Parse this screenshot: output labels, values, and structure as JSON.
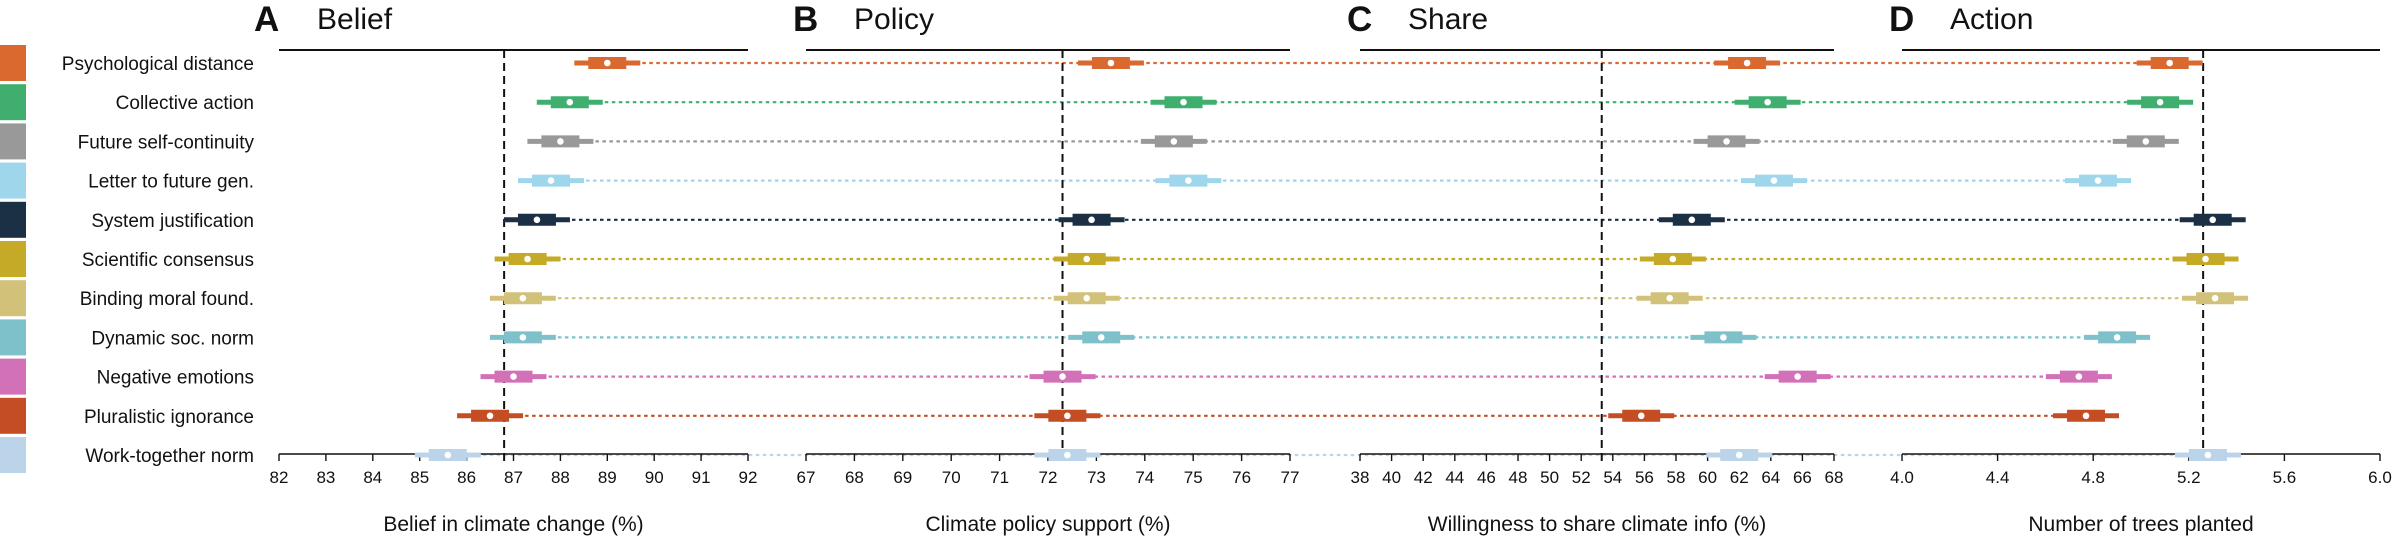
{
  "conditions": [
    {
      "name": "Psychological distance",
      "color": "#d9692e"
    },
    {
      "name": "Collective action",
      "color": "#3fae6f"
    },
    {
      "name": "Future self-continuity",
      "color": "#999999"
    },
    {
      "name": "Letter to future gen.",
      "color": "#9fd6ec"
    },
    {
      "name": "System justification",
      "color": "#1b2f45"
    },
    {
      "name": "Scientific consensus",
      "color": "#c4aa27"
    },
    {
      "name": "Binding moral found.",
      "color": "#d2c179"
    },
    {
      "name": "Dynamic soc. norm",
      "color": "#7fc1cb"
    },
    {
      "name": "Negative emotions",
      "color": "#d270b8"
    },
    {
      "name": "Pluralistic ignorance",
      "color": "#c54d24"
    },
    {
      "name": "Work-together norm",
      "color": "#bcd4ea"
    }
  ],
  "chart_data": [
    {
      "type": "scatter",
      "letter": "A",
      "title": "Belief",
      "xlabel": "Belief in climate change (%)",
      "xlim": [
        82,
        92
      ],
      "ticks": [
        "82",
        "83",
        "84",
        "85",
        "86",
        "87",
        "88",
        "89",
        "90",
        "91",
        "92"
      ],
      "reference_line": 86.8,
      "values": [
        89.0,
        88.2,
        88.0,
        87.8,
        87.5,
        87.3,
        87.2,
        87.2,
        87.0,
        86.5,
        85.6
      ]
    },
    {
      "type": "scatter",
      "letter": "B",
      "title": "Policy",
      "xlabel": "Climate policy support (%)",
      "xlim": [
        67,
        77
      ],
      "ticks": [
        "67",
        "68",
        "69",
        "70",
        "71",
        "72",
        "73",
        "74",
        "75",
        "76",
        "77"
      ],
      "reference_line": 72.3,
      "values": [
        73.3,
        74.8,
        74.6,
        74.9,
        72.9,
        72.8,
        72.8,
        73.1,
        72.3,
        72.4,
        72.4
      ]
    },
    {
      "type": "scatter",
      "letter": "C",
      "title": "Share",
      "xlabel": "Willingness to share climate info (%)",
      "xlim": [
        38,
        68
      ],
      "ticks": [
        "38",
        "40",
        "42",
        "44",
        "46",
        "48",
        "50",
        "52",
        "54",
        "56",
        "58",
        "60",
        "62",
        "64",
        "66",
        "68"
      ],
      "reference_line": 53.3,
      "values": [
        62.5,
        63.8,
        61.2,
        64.2,
        59.0,
        57.8,
        57.6,
        61.0,
        65.7,
        55.8,
        62.0
      ]
    },
    {
      "type": "scatter",
      "letter": "D",
      "title": "Action",
      "xlabel": "Number of trees planted",
      "xlim": [
        4.0,
        6.0
      ],
      "ticks": [
        "4.0",
        "4.4",
        "4.8",
        "5.2",
        "5.6",
        "6.0"
      ],
      "reference_line": 5.26,
      "values": [
        5.12,
        5.08,
        5.02,
        4.82,
        5.3,
        5.27,
        5.31,
        4.9,
        4.74,
        4.77,
        5.28
      ]
    }
  ]
}
